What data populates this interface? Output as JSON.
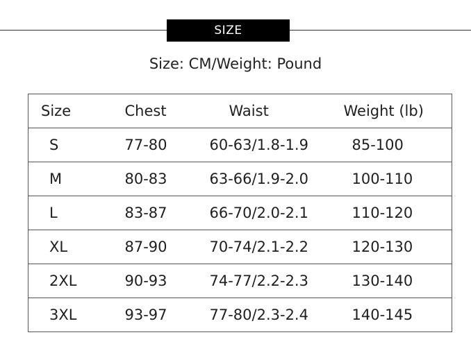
{
  "banner": {
    "title": "SIZE"
  },
  "subtitle": "Size: CM/Weight: Pound",
  "table": {
    "headers": [
      "Size",
      "Chest",
      "Waist",
      "Weight (lb)"
    ],
    "rows": [
      [
        "S",
        "77-80",
        "60-63/1.8-1.9",
        "85-100"
      ],
      [
        "M",
        "80-83",
        "63-66/1.9-2.0",
        "100-110"
      ],
      [
        "L",
        "83-87",
        "66-70/2.0-2.1",
        "110-120"
      ],
      [
        "XL",
        "87-90",
        "70-74/2.1-2.2",
        "120-130"
      ],
      [
        "2XL",
        "90-93",
        "74-77/2.2-2.3",
        "130-140"
      ],
      [
        "3XL",
        "93-97",
        "77-80/2.3-2.4",
        "140-145"
      ]
    ]
  }
}
